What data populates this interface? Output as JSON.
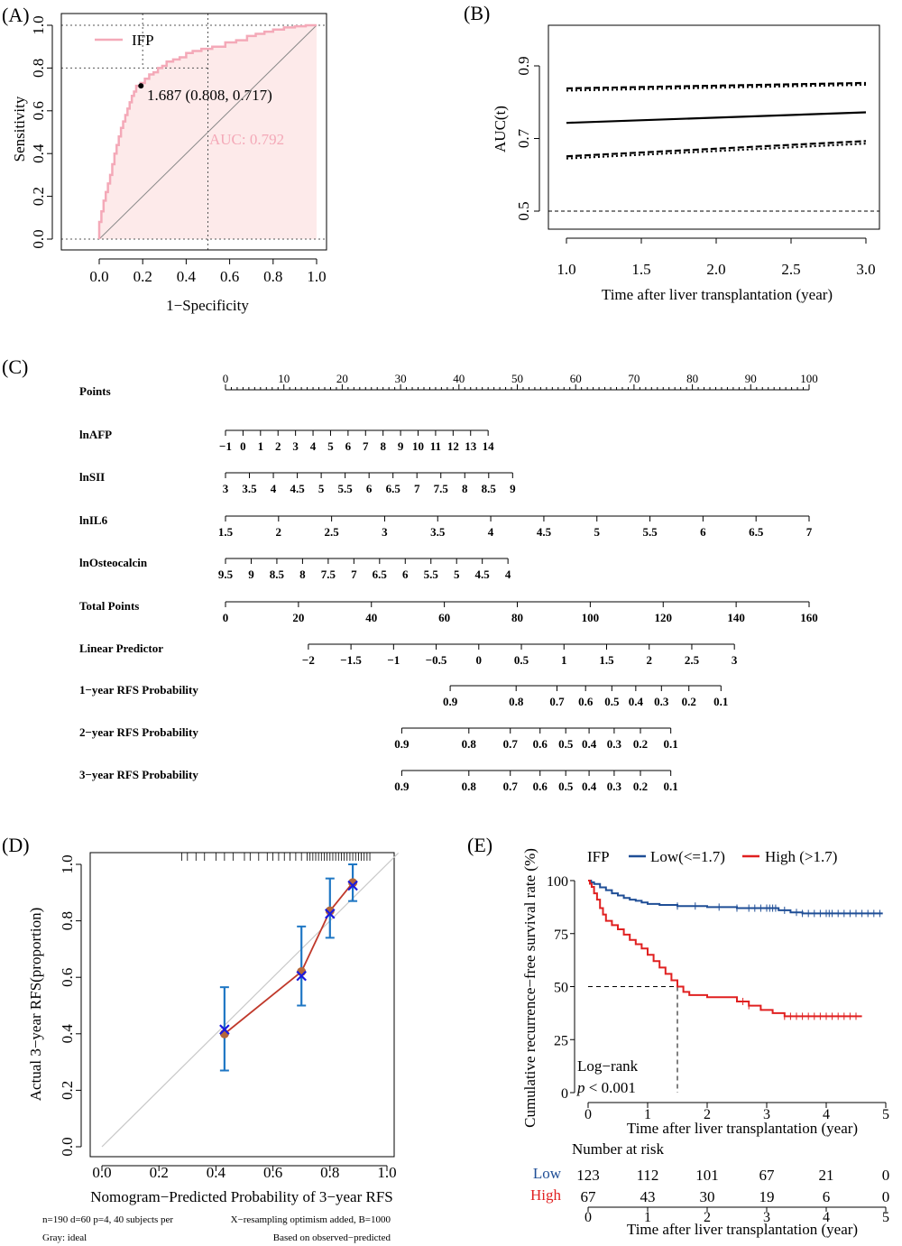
{
  "panels": {
    "A": {
      "label": "(A)",
      "chart_data": {
        "type": "line",
        "xlabel": "1−Specificity",
        "ylabel": "Sensitivity",
        "xlim": [
          0,
          1
        ],
        "ylim": [
          0,
          1
        ],
        "xticks": [
          "0.0",
          "0.2",
          "0.4",
          "0.6",
          "0.8",
          "1.0"
        ],
        "yticks": [
          "0.0",
          "0.2",
          "0.4",
          "0.6",
          "0.8",
          "1.0"
        ],
        "legend": "IFP",
        "auc_text": "AUC: 0.792",
        "threshold_text": "1.687 (0.808, 0.717)",
        "threshold_point": [
          0.192,
          0.717
        ],
        "grid": true,
        "colors": {
          "curve": "#f4a9b8",
          "fill": "#fdeaea"
        },
        "series": [
          {
            "name": "IFP",
            "x": [
              0,
              0,
              0.01,
              0.01,
              0.02,
              0.02,
              0.03,
              0.03,
              0.04,
              0.04,
              0.05,
              0.05,
              0.06,
              0.06,
              0.07,
              0.07,
              0.08,
              0.08,
              0.09,
              0.09,
              0.1,
              0.1,
              0.11,
              0.11,
              0.12,
              0.12,
              0.13,
              0.13,
              0.14,
              0.14,
              0.15,
              0.15,
              0.16,
              0.16,
              0.17,
              0.17,
              0.19,
              0.19,
              0.21,
              0.21,
              0.23,
              0.23,
              0.25,
              0.25,
              0.27,
              0.27,
              0.29,
              0.29,
              0.31,
              0.31,
              0.34,
              0.34,
              0.37,
              0.37,
              0.4,
              0.4,
              0.43,
              0.43,
              0.47,
              0.47,
              0.52,
              0.52,
              0.58,
              0.58,
              0.63,
              0.63,
              0.68,
              0.68,
              0.72,
              0.72,
              0.76,
              0.76,
              0.8,
              0.8,
              0.85,
              0.85,
              0.9,
              0.9,
              0.95,
              0.95,
              1.0
            ],
            "y": [
              0,
              0.08,
              0.08,
              0.13,
              0.13,
              0.18,
              0.18,
              0.22,
              0.22,
              0.26,
              0.26,
              0.3,
              0.3,
              0.35,
              0.35,
              0.4,
              0.4,
              0.44,
              0.44,
              0.48,
              0.48,
              0.52,
              0.52,
              0.55,
              0.55,
              0.58,
              0.58,
              0.61,
              0.61,
              0.64,
              0.64,
              0.67,
              0.67,
              0.69,
              0.69,
              0.717,
              0.717,
              0.73,
              0.73,
              0.75,
              0.75,
              0.77,
              0.77,
              0.78,
              0.78,
              0.8,
              0.8,
              0.81,
              0.81,
              0.83,
              0.83,
              0.84,
              0.84,
              0.85,
              0.85,
              0.87,
              0.87,
              0.88,
              0.88,
              0.89,
              0.89,
              0.9,
              0.9,
              0.92,
              0.92,
              0.93,
              0.93,
              0.95,
              0.95,
              0.96,
              0.96,
              0.97,
              0.97,
              0.98,
              0.98,
              0.99,
              0.99,
              0.995,
              0.995,
              1.0,
              1.0
            ]
          }
        ]
      }
    },
    "B": {
      "label": "(B)",
      "chart_data": {
        "type": "line",
        "xlabel": "Time after liver transplantation (year)",
        "ylabel": "AUC(t)",
        "xlim": [
          1.0,
          3.0
        ],
        "ylim": [
          0.45,
          1.0
        ],
        "xticks": [
          "1.0",
          "1.5",
          "2.0",
          "2.5",
          "3.0"
        ],
        "yticks": [
          "0.5",
          "0.7",
          "0.9"
        ],
        "reference_line": 0.5,
        "series": [
          {
            "name": "",
            "x": [
              1.0,
              3.0
            ],
            "y": [
              0.743,
              0.772
            ],
            "style": "solid"
          },
          {
            "name": "",
            "x": [
              1.0,
              3.0
            ],
            "y": [
              0.838,
              0.853
            ],
            "style": "dashed"
          },
          {
            "name": "",
            "x": [
              1.0,
              3.0
            ],
            "y": [
              0.832,
              0.848
            ],
            "style": "dotted"
          },
          {
            "name": "",
            "x": [
              1.0,
              3.0
            ],
            "y": [
              0.651,
              0.693
            ],
            "style": "dashed"
          },
          {
            "name": "",
            "x": [
              1.0,
              3.0
            ],
            "y": [
              0.645,
              0.686
            ],
            "style": "dotted"
          }
        ]
      }
    },
    "C": {
      "label": "(C)",
      "chart_data": {
        "type": "nomogram",
        "rows": [
          {
            "name": "Points",
            "ticks": [
              "0",
              "10",
              "20",
              "30",
              "40",
              "50",
              "60",
              "70",
              "80",
              "90",
              "100"
            ],
            "pos": [
              0,
              10,
              20,
              30,
              40,
              50,
              60,
              70,
              80,
              90,
              100
            ],
            "above": true
          },
          {
            "name": "lnAFP",
            "ticks": [
              "−1",
              "0",
              "1",
              "2",
              "3",
              "4",
              "5",
              "6",
              "7",
              "8",
              "9",
              "10",
              "11",
              "12",
              "13",
              "14"
            ],
            "pos": [
              0,
              3,
              6,
              9,
              12,
              15,
              18,
              21,
              24,
              27,
              30,
              33,
              36,
              39,
              42,
              45
            ]
          },
          {
            "name": "lnSII",
            "ticks": [
              "3",
              "3.5",
              "4",
              "4.5",
              "5",
              "5.5",
              "6",
              "6.5",
              "7",
              "7.5",
              "8",
              "8.5",
              "9"
            ],
            "pos": [
              0,
              4.1,
              8.2,
              12.3,
              16.4,
              20.5,
              24.6,
              28.7,
              32.8,
              36.9,
              41,
              45.1,
              49.2
            ]
          },
          {
            "name": "lnIL6",
            "ticks": [
              "1.5",
              "2",
              "2.5",
              "3",
              "3.5",
              "4",
              "4.5",
              "5",
              "5.5",
              "6",
              "6.5",
              "7"
            ],
            "pos": [
              0,
              9.09,
              18.18,
              27.27,
              36.36,
              45.45,
              54.55,
              63.64,
              72.73,
              81.82,
              90.91,
              100
            ]
          },
          {
            "name": "lnOsteocalcin",
            "ticks": [
              "9.5",
              "9",
              "8.5",
              "8",
              "7.5",
              "7",
              "6.5",
              "6",
              "5.5",
              "5",
              "4.5",
              "4"
            ],
            "pos": [
              0,
              4.4,
              8.8,
              13.2,
              17.6,
              22,
              26.4,
              30.8,
              35.2,
              39.6,
              44,
              48.4
            ]
          },
          {
            "name": "Total Points",
            "ticks": [
              "0",
              "20",
              "40",
              "60",
              "80",
              "100",
              "120",
              "140",
              "160"
            ],
            "pos": [
              0,
              12.5,
              25,
              37.5,
              50,
              62.5,
              75,
              87.5,
              100
            ]
          },
          {
            "name": "Linear Predictor",
            "ticks": [
              "−2",
              "−1.5",
              "−1",
              "−0.5",
              "0",
              "0.5",
              "1",
              "1.5",
              "2",
              "2.5",
              "3"
            ],
            "pos": [
              14.2,
              21.5,
              28.8,
              36.1,
              43.4,
              50.7,
              58,
              65.3,
              72.6,
              79.9,
              87.2
            ]
          },
          {
            "name": "1−year RFS Probability",
            "ticks": [
              "0.9",
              "0.8",
              "0.7",
              "0.6",
              "0.5",
              "0.4",
              "0.3",
              "0.2",
              "0.1"
            ],
            "pos": [
              38.5,
              49.8,
              56.8,
              61.7,
              66.2,
              70.3,
              74.7,
              79.4,
              84.9
            ]
          },
          {
            "name": "2−year RFS Probability",
            "ticks": [
              "0.9",
              "0.8",
              "0.7",
              "0.6",
              "0.5",
              "0.4",
              "0.3",
              "0.2",
              "0.1"
            ],
            "pos": [
              30.2,
              41.7,
              48.8,
              53.9,
              58.3,
              62.3,
              66.6,
              71.1,
              76.3
            ]
          },
          {
            "name": "3−year RFS Probability",
            "ticks": [
              "0.9",
              "0.8",
              "0.7",
              "0.6",
              "0.5",
              "0.4",
              "0.3",
              "0.2",
              "0.1"
            ],
            "pos": [
              30.2,
              41.7,
              48.8,
              53.9,
              58.3,
              62.3,
              66.6,
              71.1,
              76.3
            ]
          }
        ]
      }
    },
    "D": {
      "label": "(D)",
      "chart_data": {
        "type": "scatter",
        "xlabel": "Nomogram−Predicted Probability of 3−year RFS",
        "ylabel": "Actual 3−year RFS(proportion)",
        "xlim": [
          0,
          1
        ],
        "ylim": [
          0,
          1
        ],
        "xticks": [
          "0.0",
          "0.2",
          "0.4",
          "0.6",
          "0.8",
          "1.0"
        ],
        "yticks": [
          "0.0",
          "0.2",
          "0.4",
          "0.6",
          "0.8",
          "1.0"
        ],
        "points": [
          {
            "x": 0.43,
            "y": 0.4,
            "corrected": 0.415,
            "lo": 0.27,
            "hi": 0.565
          },
          {
            "x": 0.7,
            "y": 0.62,
            "corrected": 0.605,
            "lo": 0.5,
            "hi": 0.78
          },
          {
            "x": 0.8,
            "y": 0.835,
            "corrected": 0.825,
            "lo": 0.74,
            "hi": 0.95
          },
          {
            "x": 0.88,
            "y": 0.935,
            "corrected": 0.925,
            "lo": 0.87,
            "hi": 1.0
          }
        ],
        "footnotes": {
          "left1": "n=190 d=60 p=4, 40 subjects per",
          "left2": "Gray: ideal",
          "right1": "X−resampling optimism added, B=1000",
          "right2": "Based on observed−predicted"
        },
        "colors": {
          "observed": "#b5673a",
          "corrected": "#1a1adf",
          "errorbar": "#1f77c4",
          "line": "#c0392b"
        }
      }
    },
    "E": {
      "label": "(E)",
      "chart_data": {
        "type": "line",
        "xlabel": "Time after liver transplantation (year)",
        "ylabel": "Cumulative recurrence−free survival rate (%)",
        "xlim": [
          0,
          5
        ],
        "ylim": [
          0,
          100
        ],
        "xticks": [
          "0",
          "1",
          "2",
          "3",
          "4",
          "5"
        ],
        "yticks": [
          "0",
          "25",
          "50",
          "75",
          "100"
        ],
        "legend_title": "IFP",
        "logrank": "Log−rank",
        "pvalue_p": "p",
        "pvalue_rest": " < 0.001",
        "median_high": 1.5,
        "series": [
          {
            "name": "Low(<=1.7)",
            "color": "#1f4e96",
            "x": [
              0,
              0.05,
              0.1,
              0.2,
              0.3,
              0.4,
              0.5,
              0.6,
              0.7,
              0.8,
              0.9,
              1.0,
              1.2,
              1.5,
              2.0,
              2.5,
              3.0,
              3.2,
              3.4,
              3.6,
              4.0,
              4.5,
              4.95
            ],
            "y": [
              100,
              99.2,
              98.4,
              96.8,
              95.5,
              94,
              93,
              91.8,
              91,
              90.5,
              89.7,
              89,
              88.5,
              88,
              87.5,
              87,
              87,
              86,
              85,
              84.5,
              84.5,
              84.5,
              84.5
            ]
          },
          {
            "name": "High (>1.7)",
            "color": "#e02020",
            "x": [
              0,
              0.03,
              0.06,
              0.1,
              0.15,
              0.2,
              0.25,
              0.3,
              0.4,
              0.5,
              0.6,
              0.7,
              0.8,
              0.9,
              1.0,
              1.1,
              1.2,
              1.3,
              1.4,
              1.5,
              1.6,
              1.7,
              2.0,
              2.5,
              2.7,
              2.9,
              3.1,
              3.3,
              3.6,
              4.0,
              4.5,
              4.6
            ],
            "y": [
              100,
              98.5,
              97,
              94,
              91,
              87,
              84,
              81,
              79,
              77,
              74.5,
              72,
              70,
              68,
              65,
              62,
              59,
              56,
              53,
              50,
              47.5,
              46,
              45,
              43,
              41,
              39,
              37.5,
              36,
              36,
              36,
              36,
              36
            ]
          }
        ],
        "risk_table": {
          "title": "Number at risk",
          "rows": [
            {
              "label": "Low",
              "color": "#1f4e96",
              "values": [
                "123",
                "112",
                "101",
                "67",
                "21",
                "0"
              ]
            },
            {
              "label": "High",
              "color": "#e02020",
              "values": [
                "67",
                "43",
                "30",
                "19",
                "6",
                "0"
              ]
            }
          ]
        }
      }
    }
  }
}
